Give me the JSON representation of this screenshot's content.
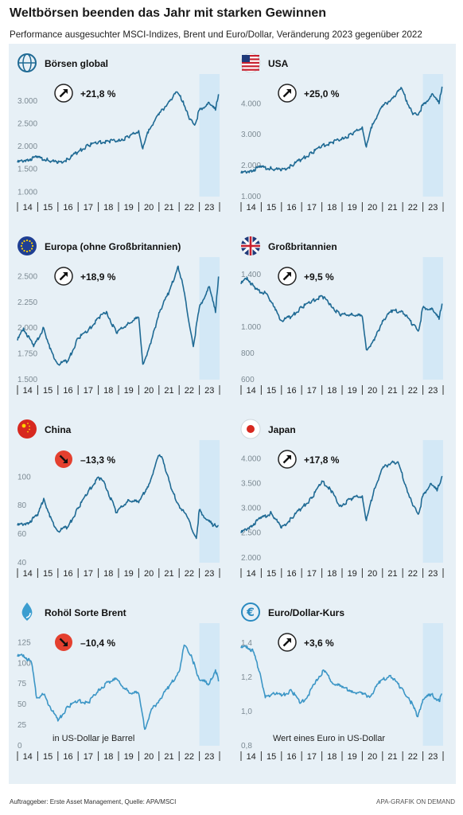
{
  "title": "Weltbörsen beenden das Jahr mit starken Gewinnen",
  "subtitle": "Performance ausgesuchter MSCI-Indizes, Brent und Euro/Dollar, Veränderung 2023 gegenüber 2022",
  "footer_left": "Auftraggeber: Erste Asset Management, Quelle: APA/MSCI",
  "footer_right": "APA-GRAFIK ON DEMAND",
  "colors": {
    "panel_bg": "#e7f0f6",
    "line_dark": "#1f6a94",
    "line_light": "#3c96c6",
    "highlight_2023": "#d3e8f6",
    "arrow_up_bg": "#ffffff",
    "arrow_down_bg": "#e4402f"
  },
  "chart_data": [
    {
      "type": "line",
      "title": "Börsen global",
      "icon": "globe-icon",
      "change": "+21,8 %",
      "direction": "up",
      "x_ticks": [
        "14",
        "15",
        "16",
        "17",
        "18",
        "19",
        "20",
        "21",
        "22",
        "23"
      ],
      "y_ticks": [
        "1.000",
        "1.500",
        "2.000",
        "2.500",
        "3.000"
      ],
      "ylim": [
        900,
        3350
      ],
      "series": [
        {
          "x": [
            2014,
            2014.5,
            2015,
            2015.5,
            2016,
            2016.5,
            2017,
            2017.5,
            2018,
            2018.5,
            2019,
            2019.5,
            2020,
            2020.2,
            2020.5,
            2021,
            2021.5,
            2021.9,
            2022.2,
            2022.5,
            2022.8,
            2023,
            2023.5,
            2023.8,
            2023.95
          ],
          "values": [
            1650,
            1720,
            1760,
            1700,
            1640,
            1720,
            1880,
            2020,
            2100,
            2120,
            2150,
            2200,
            2350,
            1950,
            2380,
            2700,
            3000,
            3200,
            3000,
            2600,
            2500,
            2800,
            2950,
            2800,
            3150
          ]
        }
      ]
    },
    {
      "type": "line",
      "title": "USA",
      "icon": "us-flag-icon",
      "change": "+25,0 %",
      "direction": "up",
      "x_ticks": [
        "14",
        "15",
        "16",
        "17",
        "18",
        "19",
        "20",
        "21",
        "22",
        "23"
      ],
      "y_ticks": [
        "1.000",
        "2.000",
        "3.000",
        "4.000"
      ],
      "ylim": [
        1000,
        4600
      ],
      "series": [
        {
          "x": [
            2014,
            2014.5,
            2015,
            2015.5,
            2016,
            2016.5,
            2017,
            2017.5,
            2018,
            2018.5,
            2019,
            2019.5,
            2020,
            2020.2,
            2020.5,
            2021,
            2021.5,
            2021.95,
            2022.2,
            2022.5,
            2022.8,
            2023,
            2023.5,
            2023.8,
            2023.95
          ],
          "values": [
            1750,
            1850,
            1950,
            1900,
            1850,
            2000,
            2200,
            2400,
            2650,
            2750,
            2900,
            3000,
            3250,
            2600,
            3350,
            3900,
            4200,
            4500,
            4100,
            3650,
            3700,
            3950,
            4300,
            4000,
            4550
          ]
        }
      ]
    },
    {
      "type": "line",
      "title": "Europa (ohne Großbritannien)",
      "icon": "eu-flag-icon",
      "change": "+18,9 %",
      "direction": "up",
      "x_ticks": [
        "14",
        "15",
        "16",
        "17",
        "18",
        "19",
        "20",
        "21",
        "22",
        "23"
      ],
      "y_ticks": [
        "1.500",
        "1.750",
        "2.000",
        "2.250",
        "2.500"
      ],
      "ylim": [
        1500,
        2580
      ],
      "series": [
        {
          "x": [
            2014,
            2014.3,
            2014.8,
            2015.3,
            2015.6,
            2016,
            2016.5,
            2017,
            2017.5,
            2018,
            2018.4,
            2018.9,
            2019.5,
            2020,
            2020.2,
            2020.6,
            2021,
            2021.5,
            2021.95,
            2022.2,
            2022.7,
            2023,
            2023.5,
            2023.8,
            2023.95
          ],
          "values": [
            1880,
            2000,
            1820,
            2000,
            1800,
            1650,
            1680,
            1900,
            1980,
            2100,
            2160,
            1950,
            2050,
            2100,
            1650,
            1850,
            2150,
            2350,
            2600,
            2400,
            1820,
            2200,
            2400,
            2150,
            2500
          ]
        }
      ]
    },
    {
      "type": "line",
      "title": "Großbritannien",
      "icon": "uk-flag-icon",
      "change": "+9,5 %",
      "direction": "up",
      "x_ticks": [
        "14",
        "15",
        "16",
        "17",
        "18",
        "19",
        "20",
        "21",
        "22",
        "23"
      ],
      "y_ticks": [
        "600",
        "800",
        "1.000",
        "1.400"
      ],
      "ylim": [
        600,
        1450
      ],
      "series": [
        {
          "x": [
            2014,
            2014.3,
            2014.7,
            2015.3,
            2015.7,
            2016,
            2016.5,
            2017,
            2017.5,
            2018,
            2018.4,
            2018.9,
            2019.5,
            2020,
            2020.2,
            2020.6,
            2021,
            2021.5,
            2022,
            2022.5,
            2022.8,
            2023,
            2023.5,
            2023.8,
            2023.95
          ],
          "values": [
            1330,
            1380,
            1290,
            1250,
            1130,
            1050,
            1080,
            1150,
            1200,
            1240,
            1180,
            1090,
            1100,
            1080,
            830,
            900,
            1050,
            1130,
            1120,
            1020,
            980,
            1150,
            1130,
            1060,
            1180
          ]
        }
      ]
    },
    {
      "type": "line",
      "title": "China",
      "icon": "china-flag-icon",
      "change": "–13,3 %",
      "direction": "down",
      "x_ticks": [
        "14",
        "15",
        "16",
        "17",
        "18",
        "19",
        "20",
        "21",
        "22",
        "23"
      ],
      "y_ticks": [
        "40",
        "60",
        "80",
        "100"
      ],
      "ylim": [
        40,
        118
      ],
      "series": [
        {
          "x": [
            2014,
            2014.5,
            2015,
            2015.3,
            2015.6,
            2016,
            2016.5,
            2017,
            2017.5,
            2018,
            2018.3,
            2018.9,
            2019.5,
            2020,
            2020.5,
            2021,
            2021.2,
            2021.6,
            2022,
            2022.4,
            2022.85,
            2023,
            2023.3,
            2023.7,
            2023.95
          ],
          "values": [
            66,
            68,
            73,
            85,
            72,
            62,
            65,
            78,
            90,
            100,
            96,
            75,
            84,
            82,
            95,
            115,
            112,
            92,
            80,
            72,
            57,
            77,
            71,
            66,
            66
          ]
        }
      ]
    },
    {
      "type": "line",
      "title": "Japan",
      "icon": "japan-flag-icon",
      "change": "+17,8 %",
      "direction": "up",
      "x_ticks": [
        "14",
        "15",
        "16",
        "17",
        "18",
        "19",
        "20",
        "21",
        "22",
        "23"
      ],
      "y_ticks": [
        "2.000",
        "2.500",
        "3.000",
        "3.500",
        "4.000"
      ],
      "ylim": [
        1900,
        4150
      ],
      "series": [
        {
          "x": [
            2014,
            2014.5,
            2015,
            2015.5,
            2016,
            2016.5,
            2017,
            2017.5,
            2018,
            2018.4,
            2018.9,
            2019.5,
            2020,
            2020.2,
            2020.6,
            2021,
            2021.5,
            2021.8,
            2022.2,
            2022.5,
            2022.8,
            2023,
            2023.4,
            2023.7,
            2023.95
          ],
          "values": [
            2500,
            2650,
            2800,
            2900,
            2600,
            2800,
            3000,
            3200,
            3550,
            3400,
            3050,
            3200,
            3250,
            2750,
            3400,
            3800,
            3950,
            3900,
            3400,
            3050,
            2900,
            3250,
            3500,
            3350,
            3650
          ]
        }
      ]
    },
    {
      "type": "line",
      "title": "Rohöl Sorte Brent",
      "icon": "oil-drop-icon",
      "change": "–10,4 %",
      "direction": "down",
      "x_ticks": [
        "14",
        "15",
        "16",
        "17",
        "18",
        "19",
        "20",
        "21",
        "22",
        "23"
      ],
      "y_ticks": [
        "0",
        "25",
        "50",
        "75",
        "100",
        "125"
      ],
      "ylim": [
        0,
        135
      ],
      "note": "in US-Dollar je Barrel",
      "series": [
        {
          "x": [
            2014,
            2014.3,
            2014.7,
            2014.95,
            2015.3,
            2015.6,
            2016,
            2016.5,
            2017,
            2017.5,
            2018,
            2018.8,
            2019.5,
            2020,
            2020.3,
            2020.6,
            2021,
            2021.5,
            2022,
            2022.25,
            2022.6,
            2022.9,
            2023,
            2023.5,
            2023.8,
            2023.95
          ],
          "values": [
            108,
            110,
            100,
            58,
            62,
            48,
            30,
            47,
            55,
            52,
            68,
            82,
            65,
            63,
            20,
            42,
            55,
            72,
            90,
            122,
            110,
            85,
            80,
            75,
            92,
            78
          ]
        }
      ]
    },
    {
      "type": "line",
      "title": "Euro/Dollar-Kurs",
      "icon": "euro-coin-icon",
      "change": "+3,6 %",
      "direction": "up",
      "x_ticks": [
        "14",
        "15",
        "16",
        "17",
        "18",
        "19",
        "20",
        "21",
        "22",
        "23"
      ],
      "y_ticks": [
        "0,8",
        "1,0",
        "1,2",
        "1,4"
      ],
      "ylim": [
        0.8,
        1.45
      ],
      "note": "Wert eines Euro in US-Dollar",
      "series": [
        {
          "x": [
            2014,
            2014.3,
            2014.6,
            2014.95,
            2015.2,
            2015.6,
            2016,
            2016.5,
            2016.95,
            2017.3,
            2017.7,
            2018.1,
            2018.5,
            2019,
            2019.5,
            2020,
            2020.4,
            2020.9,
            2021.4,
            2021.9,
            2022.3,
            2022.75,
            2023,
            2023.4,
            2023.8,
            2023.95
          ],
          "values": [
            1.37,
            1.38,
            1.35,
            1.22,
            1.08,
            1.11,
            1.09,
            1.12,
            1.05,
            1.09,
            1.18,
            1.24,
            1.17,
            1.14,
            1.12,
            1.1,
            1.09,
            1.18,
            1.21,
            1.14,
            1.08,
            0.97,
            1.07,
            1.1,
            1.06,
            1.1
          ]
        }
      ]
    }
  ]
}
